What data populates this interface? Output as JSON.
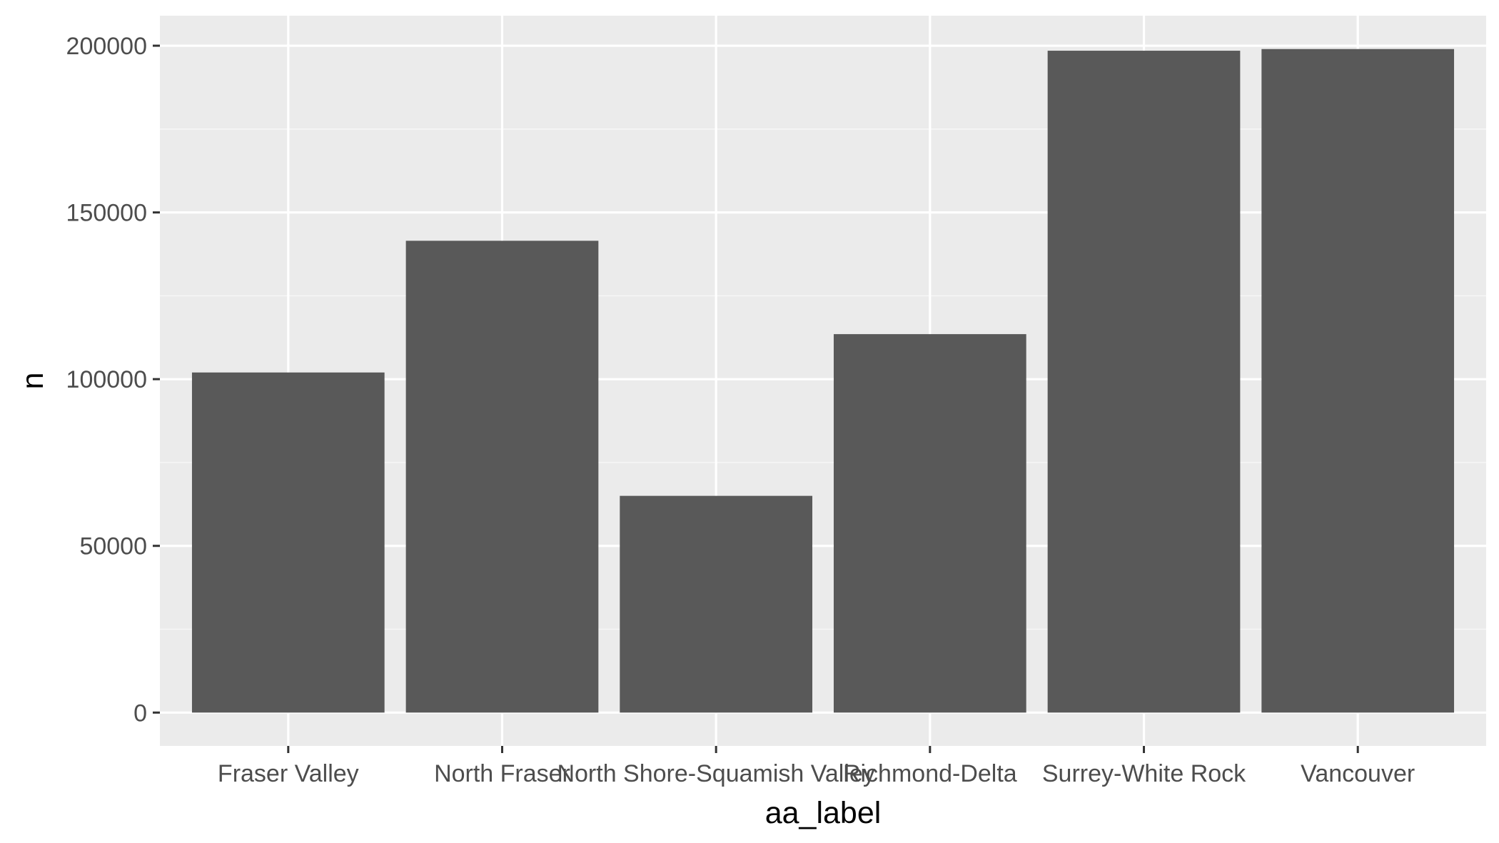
{
  "chart_data": {
    "type": "bar",
    "categories": [
      "Fraser Valley",
      "North Fraser",
      "North Shore-Squamish Valley",
      "Richmond-Delta",
      "Surrey-White Rock",
      "Vancouver"
    ],
    "values": [
      102000,
      141500,
      65000,
      113500,
      198500,
      199000
    ],
    "title": "",
    "xlabel": "aa_label",
    "ylabel": "n",
    "ylim": [
      -10000,
      209000
    ],
    "yticks": [
      0,
      50000,
      100000,
      150000,
      200000
    ],
    "ytick_labels": [
      "0",
      "50000",
      "100000",
      "150000",
      "200000"
    ],
    "grid": true,
    "colors": {
      "panel_background": "#ebebeb",
      "grid_major": "#ffffff",
      "grid_minor": "#f6f6f6",
      "bar_fill": "#595959",
      "tick_text": "#4d4d4d",
      "tick_mark": "#333333",
      "title_text": "#000000"
    }
  }
}
